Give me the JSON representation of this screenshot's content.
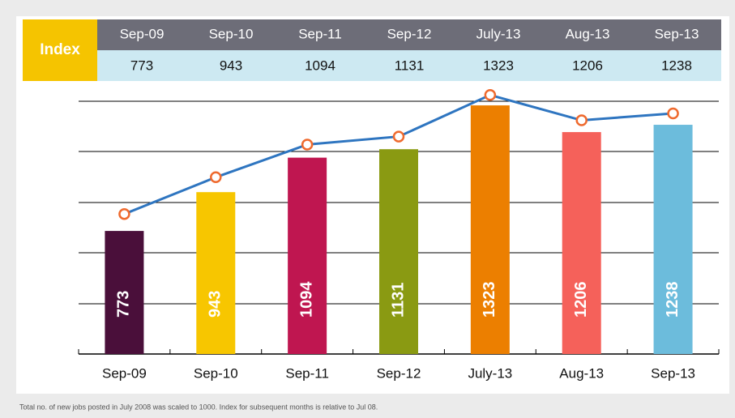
{
  "chart_data": {
    "type": "bar",
    "table_label": "Index",
    "categories": [
      "Sep-09",
      "Sep-10",
      "Sep-11",
      "Sep-12",
      "July-13",
      "Aug-13",
      "Sep-13"
    ],
    "values": [
      773,
      943,
      1094,
      1131,
      1323,
      1206,
      1238
    ],
    "colors": [
      "#4a0f3a",
      "#f7c600",
      "#bf1650",
      "#8a9a12",
      "#ec7f00",
      "#f5615a",
      "#6cbcdc"
    ],
    "ylim": [
      234,
      1412
    ],
    "line": {
      "color": "#2e75c0",
      "marker_color": "#ef6a2e",
      "axis": "y2"
    },
    "y2lim": [
      126,
      1369
    ],
    "footnote": "Total no. of new jobs posted in July 2008 was scaled to 1000. Index for subsequent months is relative to Jul 08."
  }
}
